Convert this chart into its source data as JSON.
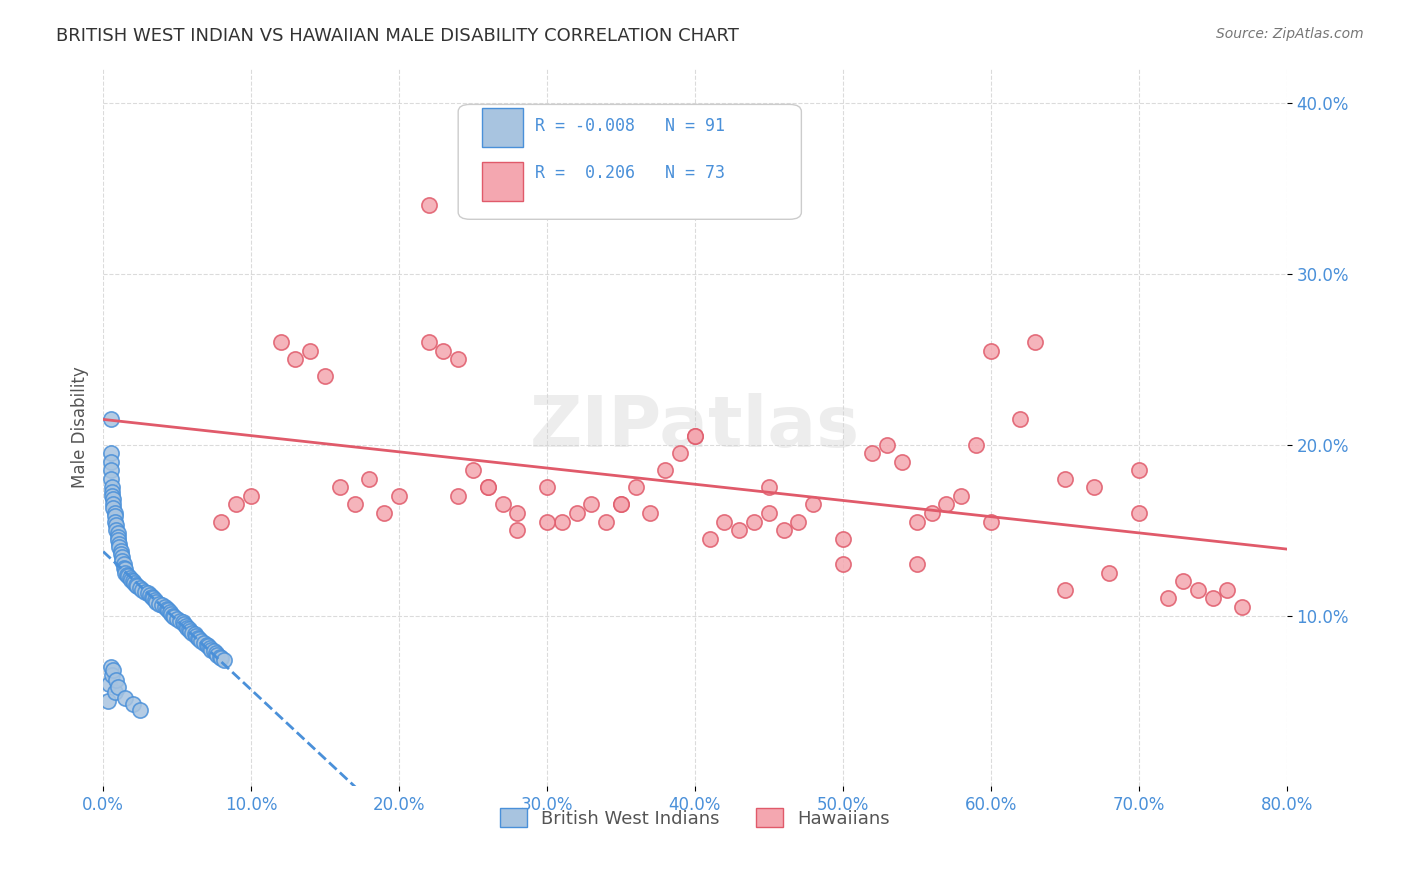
{
  "title": "BRITISH WEST INDIAN VS HAWAIIAN MALE DISABILITY CORRELATION CHART",
  "source": "Source: ZipAtlas.com",
  "xlabel": "",
  "ylabel": "Male Disability",
  "xlim": [
    0.0,
    0.8
  ],
  "ylim": [
    0.0,
    0.42
  ],
  "xticks": [
    0.0,
    0.1,
    0.2,
    0.3,
    0.4,
    0.5,
    0.6,
    0.7,
    0.8
  ],
  "xtick_labels": [
    "0.0%",
    "10.0%",
    "20.0%",
    "30.0%",
    "40.0%",
    "50.0%",
    "60.0%",
    "70.0%",
    "80.0%"
  ],
  "yticks": [
    0.1,
    0.2,
    0.3,
    0.4
  ],
  "ytick_labels": [
    "10.0%",
    "20.0%",
    "30.0%",
    "40.0%"
  ],
  "legend_labels": [
    "British West Indians",
    "Hawaiians"
  ],
  "legend_r_values": [
    "-0.008",
    "0.206"
  ],
  "legend_n_values": [
    "91",
    "73"
  ],
  "blue_color": "#a8c4e0",
  "pink_color": "#f4a7b0",
  "blue_line_color": "#4a90d9",
  "pink_line_color": "#e05a6a",
  "grid_color": "#cccccc",
  "title_color": "#333333",
  "axis_label_color": "#4a90d9",
  "watermark": "ZIPatlas",
  "blue_R": -0.008,
  "blue_N": 91,
  "pink_R": 0.206,
  "pink_N": 73,
  "blue_scatter_x": [
    0.005,
    0.005,
    0.005,
    0.005,
    0.005,
    0.006,
    0.006,
    0.006,
    0.007,
    0.007,
    0.007,
    0.008,
    0.008,
    0.008,
    0.009,
    0.009,
    0.01,
    0.01,
    0.01,
    0.011,
    0.011,
    0.012,
    0.012,
    0.013,
    0.013,
    0.014,
    0.014,
    0.015,
    0.015,
    0.016,
    0.017,
    0.018,
    0.019,
    0.02,
    0.021,
    0.022,
    0.023,
    0.025,
    0.026,
    0.028,
    0.03,
    0.032,
    0.033,
    0.034,
    0.035,
    0.036,
    0.038,
    0.04,
    0.042,
    0.043,
    0.044,
    0.045,
    0.046,
    0.047,
    0.048,
    0.05,
    0.052,
    0.054,
    0.055,
    0.056,
    0.057,
    0.058,
    0.059,
    0.06,
    0.062,
    0.063,
    0.064,
    0.065,
    0.066,
    0.068,
    0.07,
    0.071,
    0.072,
    0.073,
    0.075,
    0.076,
    0.077,
    0.079,
    0.08,
    0.082,
    0.003,
    0.004,
    0.005,
    0.006,
    0.007,
    0.008,
    0.009,
    0.01,
    0.015,
    0.02,
    0.025
  ],
  "blue_scatter_y": [
    0.215,
    0.195,
    0.19,
    0.185,
    0.18,
    0.175,
    0.172,
    0.17,
    0.168,
    0.165,
    0.163,
    0.16,
    0.158,
    0.155,
    0.153,
    0.15,
    0.148,
    0.146,
    0.144,
    0.142,
    0.14,
    0.138,
    0.136,
    0.134,
    0.132,
    0.13,
    0.128,
    0.127,
    0.125,
    0.124,
    0.123,
    0.122,
    0.121,
    0.12,
    0.119,
    0.118,
    0.117,
    0.116,
    0.115,
    0.114,
    0.113,
    0.112,
    0.111,
    0.11,
    0.109,
    0.108,
    0.107,
    0.106,
    0.105,
    0.104,
    0.103,
    0.102,
    0.101,
    0.1,
    0.099,
    0.098,
    0.097,
    0.096,
    0.095,
    0.094,
    0.093,
    0.092,
    0.091,
    0.09,
    0.089,
    0.088,
    0.087,
    0.086,
    0.085,
    0.084,
    0.083,
    0.082,
    0.081,
    0.08,
    0.079,
    0.078,
    0.077,
    0.076,
    0.075,
    0.074,
    0.05,
    0.06,
    0.07,
    0.065,
    0.068,
    0.055,
    0.062,
    0.058,
    0.052,
    0.048,
    0.045
  ],
  "pink_scatter_x": [
    0.08,
    0.09,
    0.1,
    0.12,
    0.13,
    0.14,
    0.15,
    0.16,
    0.17,
    0.18,
    0.19,
    0.2,
    0.22,
    0.23,
    0.24,
    0.25,
    0.26,
    0.27,
    0.28,
    0.3,
    0.31,
    0.32,
    0.33,
    0.34,
    0.35,
    0.36,
    0.37,
    0.38,
    0.39,
    0.4,
    0.41,
    0.42,
    0.43,
    0.44,
    0.45,
    0.46,
    0.47,
    0.48,
    0.5,
    0.52,
    0.53,
    0.54,
    0.55,
    0.56,
    0.57,
    0.58,
    0.59,
    0.6,
    0.62,
    0.63,
    0.65,
    0.67,
    0.68,
    0.7,
    0.72,
    0.73,
    0.74,
    0.75,
    0.76,
    0.77,
    0.22,
    0.24,
    0.26,
    0.28,
    0.3,
    0.35,
    0.4,
    0.45,
    0.5,
    0.55,
    0.6,
    0.65,
    0.7
  ],
  "pink_scatter_y": [
    0.155,
    0.165,
    0.17,
    0.26,
    0.25,
    0.255,
    0.24,
    0.175,
    0.165,
    0.18,
    0.16,
    0.17,
    0.26,
    0.255,
    0.25,
    0.185,
    0.175,
    0.165,
    0.15,
    0.175,
    0.155,
    0.16,
    0.165,
    0.155,
    0.165,
    0.175,
    0.16,
    0.185,
    0.195,
    0.205,
    0.145,
    0.155,
    0.15,
    0.155,
    0.16,
    0.15,
    0.155,
    0.165,
    0.145,
    0.195,
    0.2,
    0.19,
    0.155,
    0.16,
    0.165,
    0.17,
    0.2,
    0.255,
    0.215,
    0.26,
    0.18,
    0.175,
    0.125,
    0.16,
    0.11,
    0.12,
    0.115,
    0.11,
    0.115,
    0.105,
    0.34,
    0.17,
    0.175,
    0.16,
    0.155,
    0.165,
    0.205,
    0.175,
    0.13,
    0.13,
    0.155,
    0.115,
    0.185
  ]
}
